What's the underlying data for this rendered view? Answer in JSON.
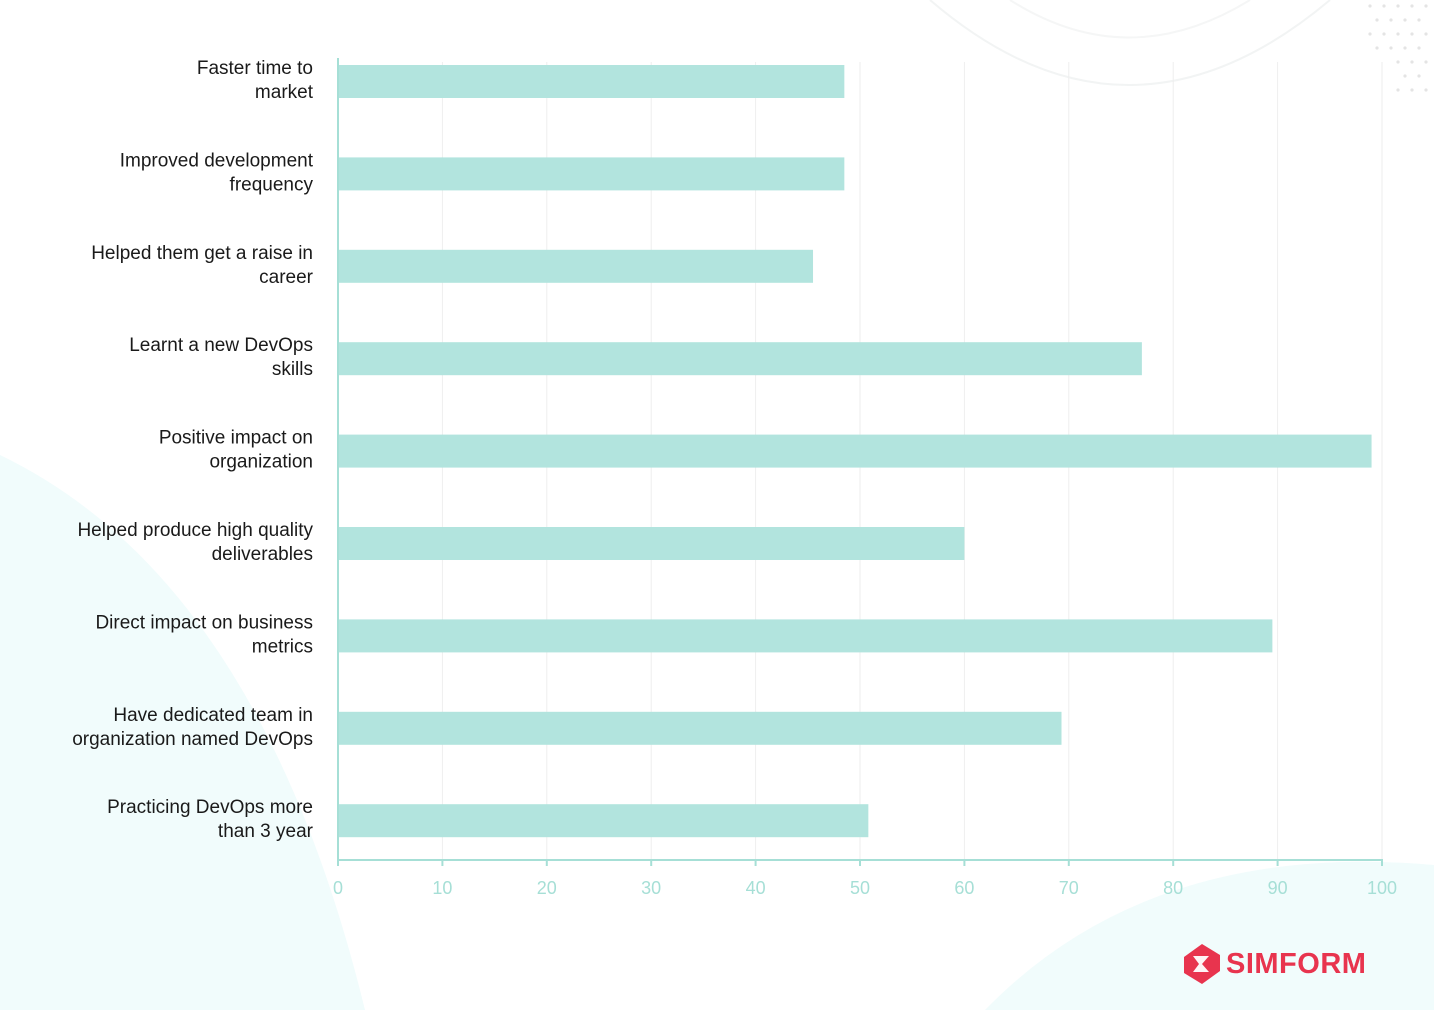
{
  "brand": {
    "name": "SIMFORM",
    "color": "#e8344e",
    "icon": "simform-logo-icon"
  },
  "colors": {
    "bar": "#b2e4de",
    "axis": "#a6dfd6",
    "grid": "#eeeeee",
    "label": "#1a1a1a"
  },
  "chart_data": {
    "type": "bar",
    "orientation": "horizontal",
    "title": "",
    "xlabel": "",
    "ylabel": "",
    "xlim": [
      0,
      100
    ],
    "ticks": [
      0,
      10,
      20,
      30,
      40,
      50,
      60,
      70,
      80,
      90,
      100
    ],
    "grid": true,
    "categories": [
      "Faster time to market",
      "Improved development frequency",
      "Helped them get a raise in career",
      "Learnt a new DevOps skills",
      "Positive impact on organization",
      "Helped produce high quality deliverables",
      "Direct impact on business metrics",
      "Have dedicated team in organization named DevOps",
      "Practicing DevOps more than 3 year"
    ],
    "label_lines": [
      [
        "Faster time to",
        "market"
      ],
      [
        "Improved development",
        "frequency"
      ],
      [
        "Helped them get a raise in",
        "career"
      ],
      [
        "Learnt a new DevOps",
        "skills"
      ],
      [
        "Positive impact on",
        "organization"
      ],
      [
        "Helped produce high quality",
        "deliverables"
      ],
      [
        "Direct impact on business",
        "metrics"
      ],
      [
        "Have dedicated team in",
        "organization named DevOps"
      ],
      [
        "Practicing DevOps more",
        "than 3 year"
      ]
    ],
    "values": [
      48.5,
      48.5,
      45.5,
      77,
      99,
      60,
      89.5,
      69.3,
      50.8
    ]
  }
}
